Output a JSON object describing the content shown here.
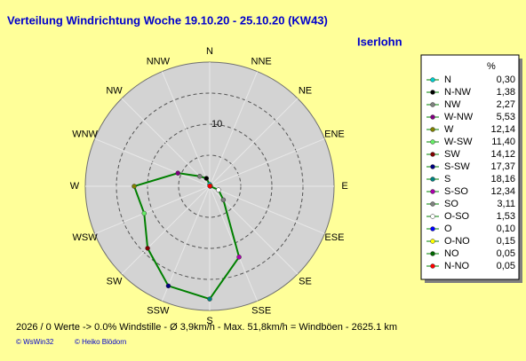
{
  "chart_data": {
    "type": "radar",
    "title": "Verteilung Windrichtung   Woche 19.10.20 - 25.10.20 (KW43)",
    "location": "Iserlohn",
    "legend_header": "%",
    "categories": [
      "N",
      "N-NW",
      "NW",
      "W-NW",
      "W",
      "W-SW",
      "SW",
      "S-SW",
      "S",
      "S-SO",
      "SO",
      "O-SO",
      "O",
      "O-NO",
      "NO",
      "N-NO"
    ],
    "axis_labels": [
      "N",
      "NNW",
      "NW",
      "WNW",
      "W",
      "WSW",
      "SW",
      "SSW",
      "S",
      "SSE",
      "SE",
      "ESE",
      "E",
      "ENE",
      "NE",
      "NNE"
    ],
    "values": [
      0.3,
      1.38,
      2.27,
      5.53,
      12.14,
      11.4,
      14.12,
      17.37,
      18.16,
      12.34,
      3.11,
      1.53,
      0.1,
      0.15,
      0.05,
      0.05
    ],
    "value_labels": [
      "0,30",
      "1,38",
      "2,27",
      "5,53",
      "12,14",
      "11,40",
      "14,12",
      "17,37",
      "18,16",
      "12,34",
      "3,11",
      "1,53",
      "0,10",
      "0,15",
      "0,05",
      "0,05"
    ],
    "colors": [
      "#00cccc",
      "#000000",
      "#808080",
      "#800080",
      "#808000",
      "#66ee66",
      "#800000",
      "#000080",
      "#008080",
      "#aa00aa",
      "#808080",
      "#ffffff",
      "#0000ff",
      "#ffff00",
      "#006600",
      "#ff0000"
    ],
    "line_color": "#008000",
    "rlim": [
      0,
      20
    ],
    "rticks": [
      10
    ],
    "rings": [
      5,
      10,
      15
    ],
    "footer": "2026 / 0 Werte  -> 0.0% Windstille   -   Ø 3,9km/h  -  Max. 51,8km/h = Windböen   -   2625.1 km",
    "credits": [
      "© WsWin32",
      "© Heiko Blödorn"
    ]
  }
}
